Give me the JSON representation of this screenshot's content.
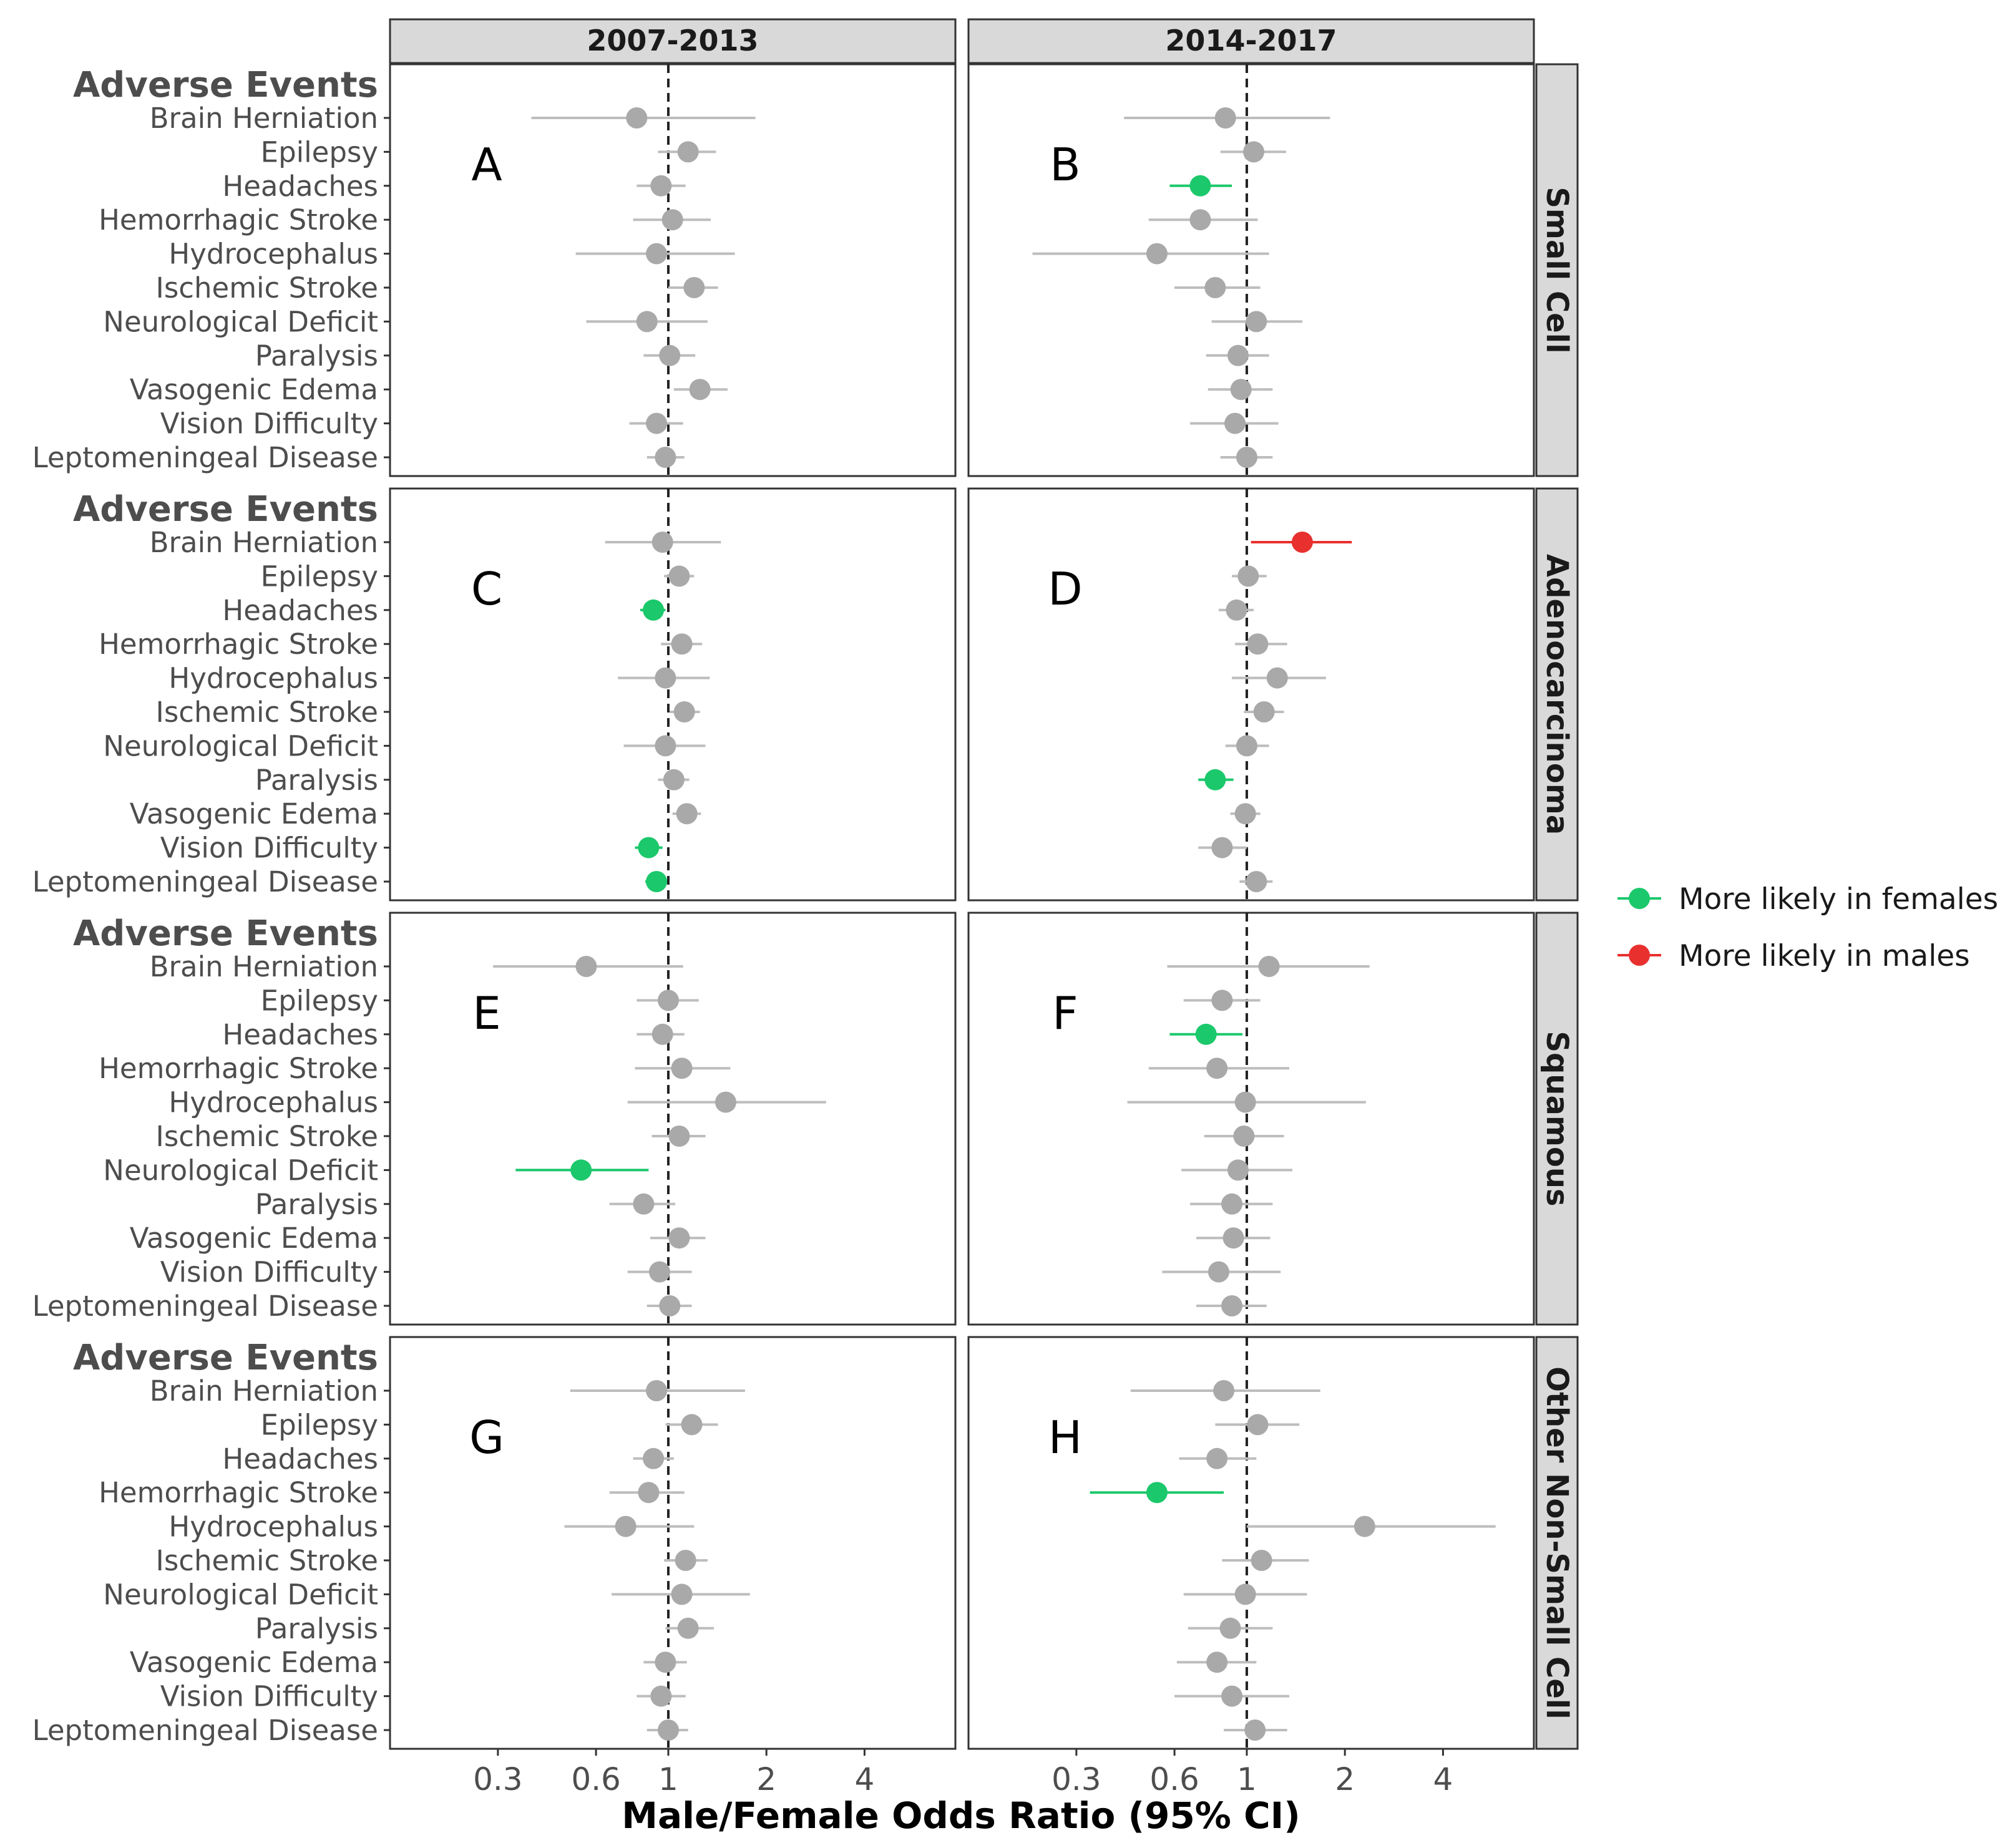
{
  "chart_data": {
    "type": "forest",
    "xlabel": "Male/Female Odds Ratio (95% CI)",
    "x_scale": "log",
    "xlim": [
      0.14,
      7.6
    ],
    "x_ticks": [
      0.3,
      0.6,
      1,
      2,
      4
    ],
    "x_tick_labels": [
      "0.3",
      "0.6",
      "1",
      "2",
      "4"
    ],
    "reference_line": 1,
    "columns": [
      "2007-2013",
      "2014-2017"
    ],
    "rows": [
      "Small Cell",
      "Adenocarcinoma",
      "Squamous",
      "Other Non-Small Cell"
    ],
    "group_header": "Adverse Events",
    "events": [
      "Brain Herniation",
      "Epilepsy",
      "Headaches",
      "Hemorrhagic Stroke",
      "Hydrocephalus",
      "Ischemic Stroke",
      "Neurological Deficit",
      "Paralysis",
      "Vasogenic Edema",
      "Vision Difficulty",
      "Leptomeningeal Disease"
    ],
    "legend": {
      "position": "right",
      "items": [
        {
          "label": "More likely in females",
          "category": "female",
          "color": "#1BC86B"
        },
        {
          "label": "More likely in males",
          "category": "male",
          "color": "#E8312F"
        }
      ]
    },
    "colors": {
      "none": "#A9A9A9",
      "ci_none": "#BDBDBD",
      "female": "#1BC86B",
      "male": "#E8312F",
      "refline": "#222222",
      "strip": "#D9D9D9"
    },
    "panels": [
      {
        "letter": "A",
        "row": 0,
        "col": 0,
        "data": [
          {
            "or": 0.8,
            "lo": 0.38,
            "hi": 1.85,
            "sig": "none"
          },
          {
            "or": 1.15,
            "lo": 0.93,
            "hi": 1.4,
            "sig": "none"
          },
          {
            "or": 0.95,
            "lo": 0.8,
            "hi": 1.13,
            "sig": "none"
          },
          {
            "or": 1.03,
            "lo": 0.78,
            "hi": 1.35,
            "sig": "none"
          },
          {
            "or": 0.92,
            "lo": 0.52,
            "hi": 1.6,
            "sig": "none"
          },
          {
            "or": 1.2,
            "lo": 1.0,
            "hi": 1.42,
            "sig": "none"
          },
          {
            "or": 0.86,
            "lo": 0.56,
            "hi": 1.32,
            "sig": "none"
          },
          {
            "or": 1.01,
            "lo": 0.84,
            "hi": 1.21,
            "sig": "none"
          },
          {
            "or": 1.25,
            "lo": 1.04,
            "hi": 1.52,
            "sig": "none"
          },
          {
            "or": 0.92,
            "lo": 0.76,
            "hi": 1.11,
            "sig": "none"
          },
          {
            "or": 0.98,
            "lo": 0.86,
            "hi": 1.12,
            "sig": "none"
          }
        ]
      },
      {
        "letter": "B",
        "row": 0,
        "col": 1,
        "data": [
          {
            "or": 0.86,
            "lo": 0.42,
            "hi": 1.8,
            "sig": "none"
          },
          {
            "or": 1.05,
            "lo": 0.83,
            "hi": 1.32,
            "sig": "none"
          },
          {
            "or": 0.72,
            "lo": 0.58,
            "hi": 0.9,
            "sig": "female"
          },
          {
            "or": 0.72,
            "lo": 0.5,
            "hi": 1.08,
            "sig": "none"
          },
          {
            "or": 0.53,
            "lo": 0.22,
            "hi": 1.17,
            "sig": "none"
          },
          {
            "or": 0.8,
            "lo": 0.6,
            "hi": 1.1,
            "sig": "none"
          },
          {
            "or": 1.07,
            "lo": 0.78,
            "hi": 1.48,
            "sig": "none"
          },
          {
            "or": 0.94,
            "lo": 0.75,
            "hi": 1.17,
            "sig": "none"
          },
          {
            "or": 0.96,
            "lo": 0.76,
            "hi": 1.2,
            "sig": "none"
          },
          {
            "or": 0.92,
            "lo": 0.67,
            "hi": 1.25,
            "sig": "none"
          },
          {
            "or": 1.0,
            "lo": 0.83,
            "hi": 1.2,
            "sig": "none"
          }
        ]
      },
      {
        "letter": "C",
        "row": 1,
        "col": 0,
        "data": [
          {
            "or": 0.96,
            "lo": 0.64,
            "hi": 1.45,
            "sig": "none"
          },
          {
            "or": 1.08,
            "lo": 0.97,
            "hi": 1.2,
            "sig": "none"
          },
          {
            "or": 0.9,
            "lo": 0.82,
            "hi": 0.98,
            "sig": "female"
          },
          {
            "or": 1.1,
            "lo": 0.95,
            "hi": 1.27,
            "sig": "none"
          },
          {
            "or": 0.98,
            "lo": 0.7,
            "hi": 1.34,
            "sig": "none"
          },
          {
            "or": 1.12,
            "lo": 1.01,
            "hi": 1.25,
            "sig": "none"
          },
          {
            "or": 0.98,
            "lo": 0.73,
            "hi": 1.3,
            "sig": "none"
          },
          {
            "or": 1.04,
            "lo": 0.93,
            "hi": 1.16,
            "sig": "none"
          },
          {
            "or": 1.14,
            "lo": 1.03,
            "hi": 1.26,
            "sig": "none"
          },
          {
            "or": 0.87,
            "lo": 0.79,
            "hi": 0.96,
            "sig": "female"
          },
          {
            "or": 0.92,
            "lo": 0.85,
            "hi": 0.99,
            "sig": "female"
          }
        ]
      },
      {
        "letter": "D",
        "row": 1,
        "col": 1,
        "data": [
          {
            "or": 1.48,
            "lo": 1.03,
            "hi": 2.1,
            "sig": "male"
          },
          {
            "or": 1.01,
            "lo": 0.9,
            "hi": 1.15,
            "sig": "none"
          },
          {
            "or": 0.93,
            "lo": 0.82,
            "hi": 1.05,
            "sig": "none"
          },
          {
            "or": 1.08,
            "lo": 0.92,
            "hi": 1.33,
            "sig": "none"
          },
          {
            "or": 1.24,
            "lo": 0.9,
            "hi": 1.75,
            "sig": "none"
          },
          {
            "or": 1.13,
            "lo": 0.98,
            "hi": 1.3,
            "sig": "none"
          },
          {
            "or": 1.0,
            "lo": 0.86,
            "hi": 1.17,
            "sig": "none"
          },
          {
            "or": 0.8,
            "lo": 0.71,
            "hi": 0.91,
            "sig": "female"
          },
          {
            "or": 0.99,
            "lo": 0.89,
            "hi": 1.1,
            "sig": "none"
          },
          {
            "or": 0.84,
            "lo": 0.71,
            "hi": 1.0,
            "sig": "none"
          },
          {
            "or": 1.07,
            "lo": 0.95,
            "hi": 1.2,
            "sig": "none"
          }
        ]
      },
      {
        "letter": "E",
        "row": 2,
        "col": 0,
        "data": [
          {
            "or": 0.56,
            "lo": 0.29,
            "hi": 1.11,
            "sig": "none"
          },
          {
            "or": 1.0,
            "lo": 0.8,
            "hi": 1.24,
            "sig": "none"
          },
          {
            "or": 0.96,
            "lo": 0.8,
            "hi": 1.12,
            "sig": "none"
          },
          {
            "or": 1.1,
            "lo": 0.79,
            "hi": 1.55,
            "sig": "none"
          },
          {
            "or": 1.5,
            "lo": 0.75,
            "hi": 3.05,
            "sig": "none"
          },
          {
            "or": 1.08,
            "lo": 0.89,
            "hi": 1.3,
            "sig": "none"
          },
          {
            "or": 0.54,
            "lo": 0.34,
            "hi": 0.87,
            "sig": "female"
          },
          {
            "or": 0.84,
            "lo": 0.66,
            "hi": 1.05,
            "sig": "none"
          },
          {
            "or": 1.08,
            "lo": 0.88,
            "hi": 1.3,
            "sig": "none"
          },
          {
            "or": 0.94,
            "lo": 0.75,
            "hi": 1.18,
            "sig": "none"
          },
          {
            "or": 1.01,
            "lo": 0.86,
            "hi": 1.18,
            "sig": "none"
          }
        ]
      },
      {
        "letter": "F",
        "row": 2,
        "col": 1,
        "data": [
          {
            "or": 1.17,
            "lo": 0.57,
            "hi": 2.38,
            "sig": "none"
          },
          {
            "or": 0.84,
            "lo": 0.64,
            "hi": 1.1,
            "sig": "none"
          },
          {
            "or": 0.75,
            "lo": 0.58,
            "hi": 0.97,
            "sig": "female"
          },
          {
            "or": 0.81,
            "lo": 0.5,
            "hi": 1.35,
            "sig": "none"
          },
          {
            "or": 0.99,
            "lo": 0.43,
            "hi": 2.32,
            "sig": "none"
          },
          {
            "or": 0.98,
            "lo": 0.74,
            "hi": 1.3,
            "sig": "none"
          },
          {
            "or": 0.94,
            "lo": 0.63,
            "hi": 1.38,
            "sig": "none"
          },
          {
            "or": 0.9,
            "lo": 0.67,
            "hi": 1.2,
            "sig": "none"
          },
          {
            "or": 0.91,
            "lo": 0.7,
            "hi": 1.18,
            "sig": "none"
          },
          {
            "or": 0.82,
            "lo": 0.55,
            "hi": 1.27,
            "sig": "none"
          },
          {
            "or": 0.9,
            "lo": 0.7,
            "hi": 1.15,
            "sig": "none"
          }
        ]
      },
      {
        "letter": "G",
        "row": 3,
        "col": 0,
        "data": [
          {
            "or": 0.92,
            "lo": 0.5,
            "hi": 1.72,
            "sig": "none"
          },
          {
            "or": 1.18,
            "lo": 0.98,
            "hi": 1.42,
            "sig": "none"
          },
          {
            "or": 0.9,
            "lo": 0.78,
            "hi": 1.04,
            "sig": "none"
          },
          {
            "or": 0.87,
            "lo": 0.66,
            "hi": 1.12,
            "sig": "none"
          },
          {
            "or": 0.74,
            "lo": 0.48,
            "hi": 1.2,
            "sig": "none"
          },
          {
            "or": 1.13,
            "lo": 0.97,
            "hi": 1.32,
            "sig": "none"
          },
          {
            "or": 1.1,
            "lo": 0.67,
            "hi": 1.78,
            "sig": "none"
          },
          {
            "or": 1.15,
            "lo": 0.98,
            "hi": 1.38,
            "sig": "none"
          },
          {
            "or": 0.98,
            "lo": 0.84,
            "hi": 1.14,
            "sig": "none"
          },
          {
            "or": 0.95,
            "lo": 0.8,
            "hi": 1.13,
            "sig": "none"
          },
          {
            "or": 1.0,
            "lo": 0.86,
            "hi": 1.15,
            "sig": "none"
          }
        ]
      },
      {
        "letter": "H",
        "row": 3,
        "col": 1,
        "data": [
          {
            "or": 0.85,
            "lo": 0.44,
            "hi": 1.68,
            "sig": "none"
          },
          {
            "or": 1.08,
            "lo": 0.8,
            "hi": 1.45,
            "sig": "none"
          },
          {
            "or": 0.81,
            "lo": 0.62,
            "hi": 1.07,
            "sig": "none"
          },
          {
            "or": 0.53,
            "lo": 0.33,
            "hi": 0.85,
            "sig": "female"
          },
          {
            "or": 2.3,
            "lo": 1.0,
            "hi": 5.8,
            "sig": "none"
          },
          {
            "or": 1.11,
            "lo": 0.84,
            "hi": 1.55,
            "sig": "none"
          },
          {
            "or": 0.99,
            "lo": 0.64,
            "hi": 1.53,
            "sig": "none"
          },
          {
            "or": 0.89,
            "lo": 0.66,
            "hi": 1.2,
            "sig": "none"
          },
          {
            "or": 0.81,
            "lo": 0.61,
            "hi": 1.07,
            "sig": "none"
          },
          {
            "or": 0.9,
            "lo": 0.6,
            "hi": 1.35,
            "sig": "none"
          },
          {
            "or": 1.06,
            "lo": 0.85,
            "hi": 1.33,
            "sig": "none"
          }
        ]
      }
    ]
  }
}
